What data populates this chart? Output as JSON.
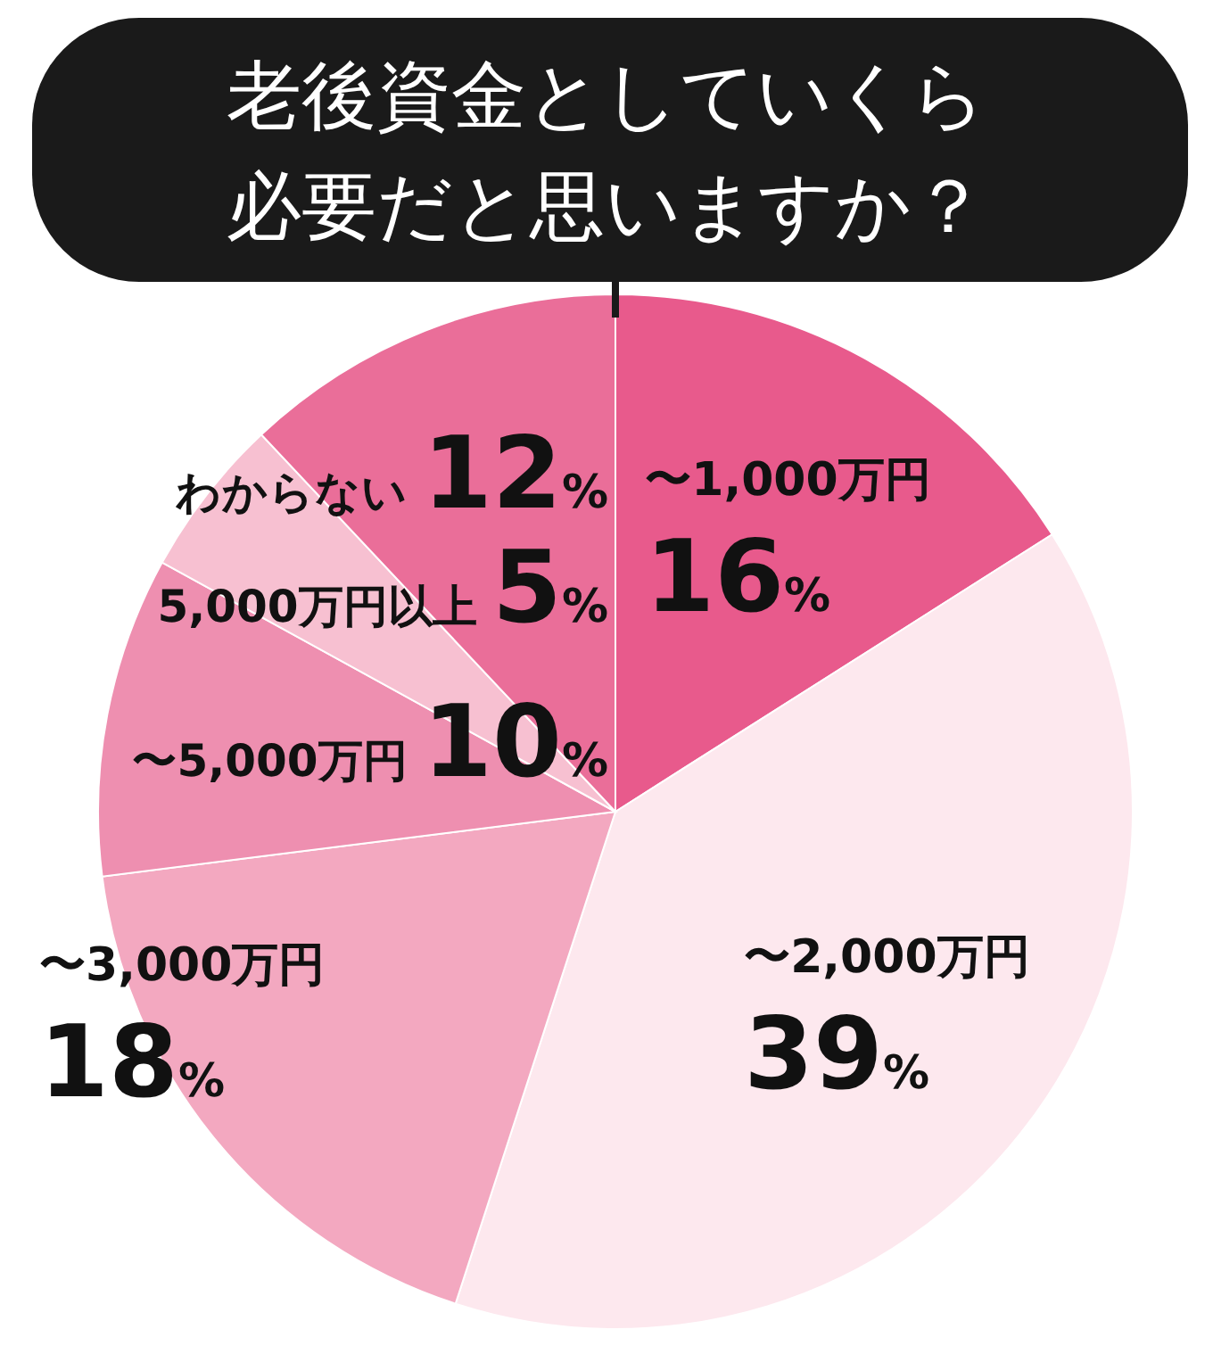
{
  "chart_data": {
    "type": "pie",
    "title": "老後資金としていくら必要だと思いますか？",
    "categories": [
      "〜1,000万円",
      "〜2,000万円",
      "〜3,000万円",
      "〜5,000万円",
      "5,000万円以上",
      "わからない"
    ],
    "values": [
      16,
      39,
      18,
      10,
      5,
      12
    ],
    "value_labels": [
      "16%",
      "39%",
      "18%",
      "10%",
      "5%",
      "12%"
    ],
    "colors": [
      "#e85a8c",
      "#fde8ee",
      "#f3a8c0",
      "#ee8fb0",
      "#f7c0d1",
      "#ea6e99"
    ]
  }
}
